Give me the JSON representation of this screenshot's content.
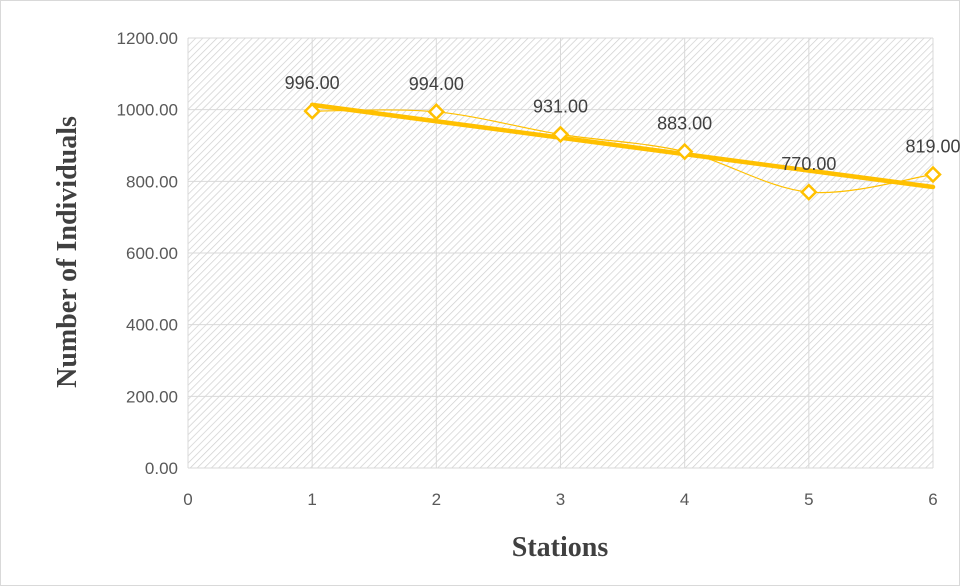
{
  "chart_data": {
    "type": "scatter",
    "x": [
      1,
      2,
      3,
      4,
      5,
      6
    ],
    "series": [
      {
        "values": [
          996,
          994,
          931,
          883,
          770,
          819
        ],
        "data_labels": [
          "996.00",
          "994.00",
          "931.00",
          "883.00",
          "770.00",
          "819.00"
        ],
        "line": "smooth",
        "marker": "diamond-open",
        "color": "#FFC000"
      }
    ],
    "trendline": {
      "type": "linear",
      "color": "#FFC000"
    },
    "xlabel": "Stations",
    "ylabel": "Number of Individuals",
    "xlim": [
      0,
      6
    ],
    "ylim": [
      0,
      1200
    ],
    "x_ticks": [
      "0",
      "1",
      "2",
      "3",
      "4",
      "5",
      "6"
    ],
    "y_ticks": [
      "0.00",
      "200.00",
      "400.00",
      "600.00",
      "800.00",
      "1000.00",
      "1200.00"
    ],
    "grid": true,
    "plot_background": "hatched",
    "legend": "none"
  }
}
